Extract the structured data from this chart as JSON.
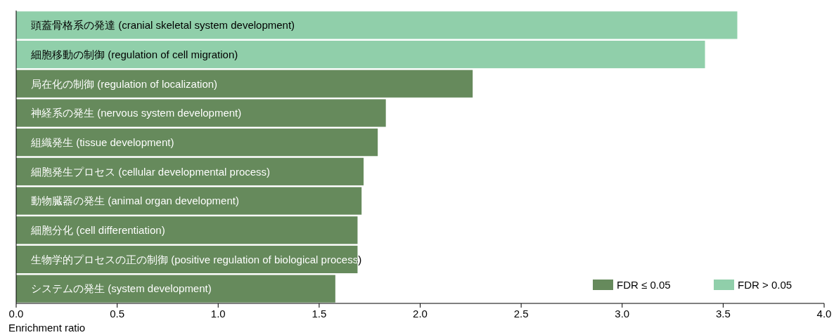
{
  "chart_data": {
    "type": "bar",
    "orientation": "horizontal",
    "stacked": true,
    "xlabel": "Enrichment ratio",
    "categories": [
      "頭蓋骨格系の発達 (cranial skeletal system development)",
      "細胞移動の制御 (regulation of cell migration)",
      "局在化の制御 (regulation of localization)",
      "神経系の発生 (nervous system development)",
      "組織発生 (tissue development)",
      "細胞発生プロセス (cellular developmental process)",
      "動物臓器の発生 (animal organ development)",
      "細胞分化 (cell differentiation)",
      "生物学的プロセスの正の制御 (positive regulation of biological process)",
      "システムの発生 (system development)"
    ],
    "series": [
      {
        "name": "FDR ≤ 0.05",
        "color": "#668a5c",
        "values": [
          null,
          null,
          2.26,
          1.83,
          1.79,
          1.72,
          1.71,
          1.69,
          1.69,
          1.58
        ]
      },
      {
        "name": "FDR > 0.05",
        "color": "#90cfaa",
        "values": [
          3.57,
          3.41,
          null,
          null,
          null,
          null,
          null,
          null,
          null,
          null
        ]
      }
    ],
    "xlim": [
      0,
      4
    ],
    "xticks": [
      {
        "value": 0,
        "label": "0.0"
      },
      {
        "value": 0.5,
        "label": "0.5"
      },
      {
        "value": 1,
        "label": "1.0"
      },
      {
        "value": 1.5,
        "label": "1.5"
      },
      {
        "value": 2,
        "label": "2.0"
      },
      {
        "value": 2.5,
        "label": "2.5"
      },
      {
        "value": 3,
        "label": "3.0"
      },
      {
        "value": 3.5,
        "label": "3.5"
      },
      {
        "value": 4,
        "label": "4.0"
      }
    ],
    "grid": false,
    "legend": "bottom right"
  }
}
